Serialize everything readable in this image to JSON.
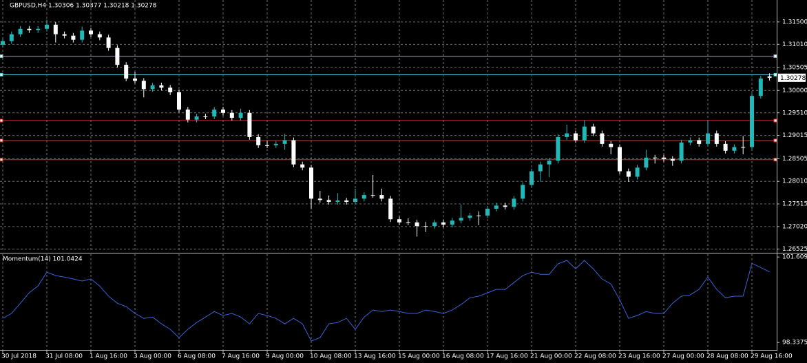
{
  "chart_data": [
    {
      "type": "candlestick",
      "title": "GBPUSD,H4  1.30306 1.30377 1.30218 1.30278",
      "bull_color": "#22b8b8",
      "bear_color": "#ffffff",
      "ylim": [
        1.2646,
        1.3198
      ],
      "yticks": [
        {
          "value": 1.315,
          "label": "1.31500"
        },
        {
          "value": 1.3101,
          "label": "1.31010"
        },
        {
          "value": 1.30505,
          "label": "1.30505"
        },
        {
          "value": 1.3,
          "label": "1.30000"
        },
        {
          "value": 1.2951,
          "label": "1.29510"
        },
        {
          "value": 1.29015,
          "label": "1.29015"
        },
        {
          "value": 1.28505,
          "label": "1.28505"
        },
        {
          "value": 1.2801,
          "label": "1.28010"
        },
        {
          "value": 1.27515,
          "label": "1.27515"
        },
        {
          "value": 1.2702,
          "label": "1.27020"
        },
        {
          "value": 1.26525,
          "label": "1.26525"
        }
      ],
      "grid": true,
      "price_label": 1.30278,
      "levels": [
        {
          "value": 1.3075,
          "color": "#4fc8d0"
        },
        {
          "value": 1.30345,
          "color": "#4fc8d0"
        },
        {
          "value": 1.2934,
          "color": "#ff2020"
        },
        {
          "value": 1.28905,
          "color": "#ff2020"
        },
        {
          "value": 1.28485,
          "color": "#ff2020"
        }
      ],
      "categories": [
        "30 Jul 2018",
        null,
        null,
        null,
        null,
        "31 Jul 08:00",
        null,
        null,
        null,
        null,
        "1 Aug 16:00",
        null,
        null,
        null,
        null,
        "3 Aug 00:00",
        null,
        null,
        null,
        null,
        "6 Aug 08:00",
        null,
        null,
        null,
        null,
        "7 Aug 16:00",
        null,
        null,
        null,
        null,
        "9 Aug 00:00",
        null,
        null,
        null,
        null,
        "10 Aug 08:00",
        null,
        null,
        null,
        null,
        "13 Aug 16:00",
        null,
        null,
        null,
        null,
        "15 Aug 00:00",
        null,
        null,
        null,
        null,
        "16 Aug 08:00",
        null,
        null,
        null,
        null,
        "17 Aug 16:00",
        null,
        null,
        null,
        null,
        "21 Aug 00:00",
        null,
        null,
        null,
        null,
        "22 Aug 08:00",
        null,
        null,
        null,
        null,
        "23 Aug 16:00",
        null,
        null,
        null,
        null,
        "27 Aug 00:00",
        null,
        null,
        null,
        null,
        "28 Aug 08:00",
        null,
        null,
        null,
        null,
        "29 Aug 16:00",
        null,
        null
      ],
      "candles": [
        [
          1.31,
          1.3114,
          1.3094,
          1.3108
        ],
        [
          1.3108,
          1.3129,
          1.3102,
          1.3123
        ],
        [
          1.3123,
          1.3141,
          1.3117,
          1.3135
        ],
        [
          1.3135,
          1.3141,
          1.3126,
          1.3132
        ],
        [
          1.3132,
          1.3141,
          1.3126,
          1.3135
        ],
        [
          1.3135,
          1.3155,
          1.3129,
          1.3144
        ],
        [
          1.3144,
          1.315,
          1.3105,
          1.3123
        ],
        [
          1.3123,
          1.3129,
          1.3114,
          1.312
        ],
        [
          1.312,
          1.3126,
          1.3105,
          1.3111
        ],
        [
          1.3111,
          1.314,
          1.3105,
          1.3131
        ],
        [
          1.3131,
          1.3137,
          1.3117,
          1.3123
        ],
        [
          1.3123,
          1.3129,
          1.311,
          1.3116
        ],
        [
          1.3116,
          1.3122,
          1.3087,
          1.3093
        ],
        [
          1.3093,
          1.3099,
          1.305,
          1.3056
        ],
        [
          1.3056,
          1.3062,
          1.302,
          1.3026
        ],
        [
          1.3026,
          1.304,
          1.3015,
          1.3021
        ],
        [
          1.3021,
          1.3027,
          1.2985,
          1.3003
        ],
        [
          1.3003,
          1.3017,
          1.2997,
          1.3011
        ],
        [
          1.3011,
          1.3017,
          1.3,
          1.3006
        ],
        [
          1.3006,
          1.3012,
          1.299,
          1.2996
        ],
        [
          1.2996,
          1.3002,
          1.2952,
          1.2958
        ],
        [
          1.2958,
          1.2964,
          1.293,
          1.2936
        ],
        [
          1.2936,
          1.2949,
          1.293,
          1.2943
        ],
        [
          1.2943,
          1.2949,
          1.2937,
          1.2943
        ],
        [
          1.2943,
          1.2964,
          1.2937,
          1.2958
        ],
        [
          1.2958,
          1.2964,
          1.2945,
          1.2951
        ],
        [
          1.2951,
          1.2957,
          1.2934,
          1.294
        ],
        [
          1.294,
          1.296,
          1.2934,
          1.2951
        ],
        [
          1.2951,
          1.2957,
          1.2892,
          1.2898
        ],
        [
          1.2898,
          1.2904,
          1.2874,
          1.288
        ],
        [
          1.288,
          1.289,
          1.2874,
          1.288
        ],
        [
          1.288,
          1.2889,
          1.2874,
          1.2883
        ],
        [
          1.2883,
          1.2905,
          1.287,
          1.2891
        ],
        [
          1.2891,
          1.2897,
          1.2832,
          1.2838
        ],
        [
          1.2838,
          1.2844,
          1.2825,
          1.2831
        ],
        [
          1.2831,
          1.2837,
          1.274,
          1.2763
        ],
        [
          1.2763,
          1.278,
          1.2754,
          1.276
        ],
        [
          1.276,
          1.277,
          1.275,
          1.2756
        ],
        [
          1.2756,
          1.2775,
          1.275,
          1.2759
        ],
        [
          1.2759,
          1.2765,
          1.275,
          1.2756
        ],
        [
          1.2756,
          1.2785,
          1.275,
          1.2763
        ],
        [
          1.2763,
          1.2777,
          1.2757,
          1.2771
        ],
        [
          1.2771,
          1.2815,
          1.2765,
          1.2771
        ],
        [
          1.2771,
          1.2785,
          1.2757,
          1.2763
        ],
        [
          1.2763,
          1.2769,
          1.2712,
          1.2718
        ],
        [
          1.2718,
          1.2724,
          1.2705,
          1.2711
        ],
        [
          1.2711,
          1.272,
          1.2705,
          1.2711
        ],
        [
          1.2711,
          1.2717,
          1.268,
          1.2703
        ],
        [
          1.2703,
          1.2712,
          1.269,
          1.2703
        ],
        [
          1.2703,
          1.2717,
          1.2697,
          1.2711
        ],
        [
          1.2711,
          1.2717,
          1.27,
          1.2706
        ],
        [
          1.2706,
          1.2721,
          1.27,
          1.2715
        ],
        [
          1.2715,
          1.275,
          1.2709,
          1.2721
        ],
        [
          1.2721,
          1.2732,
          1.2715,
          1.2726
        ],
        [
          1.2726,
          1.2735,
          1.2705,
          1.2726
        ],
        [
          1.2726,
          1.2747,
          1.272,
          1.2741
        ],
        [
          1.2741,
          1.2754,
          1.2735,
          1.2748
        ],
        [
          1.2748,
          1.2754,
          1.2739,
          1.2745
        ],
        [
          1.2745,
          1.2769,
          1.2739,
          1.2763
        ],
        [
          1.2763,
          1.2799,
          1.2757,
          1.2793
        ],
        [
          1.2793,
          1.2829,
          1.2787,
          1.2823
        ],
        [
          1.2823,
          1.2844,
          1.28,
          1.2838
        ],
        [
          1.2838,
          1.2852,
          1.281,
          1.2846
        ],
        [
          1.2846,
          1.2904,
          1.284,
          1.2898
        ],
        [
          1.2898,
          1.2925,
          1.2892,
          1.2906
        ],
        [
          1.2906,
          1.2912,
          1.2885,
          1.2891
        ],
        [
          1.2891,
          1.2935,
          1.2885,
          1.2921
        ],
        [
          1.2921,
          1.2927,
          1.29,
          1.2906
        ],
        [
          1.2906,
          1.2912,
          1.2877,
          1.2883
        ],
        [
          1.2883,
          1.2889,
          1.286,
          1.2876
        ],
        [
          1.2876,
          1.2882,
          1.2817,
          1.2823
        ],
        [
          1.2823,
          1.2829,
          1.28,
          1.2811
        ],
        [
          1.2811,
          1.2837,
          1.2805,
          1.2831
        ],
        [
          1.2831,
          1.287,
          1.2825,
          1.2853
        ],
        [
          1.2853,
          1.2859,
          1.284,
          1.2853
        ],
        [
          1.2853,
          1.2859,
          1.2844,
          1.285
        ],
        [
          1.285,
          1.2856,
          1.2835,
          1.2846
        ],
        [
          1.2846,
          1.2892,
          1.284,
          1.2886
        ],
        [
          1.2886,
          1.2897,
          1.288,
          1.2891
        ],
        [
          1.2891,
          1.2897,
          1.2877,
          1.2883
        ],
        [
          1.2883,
          1.2935,
          1.2877,
          1.2906
        ],
        [
          1.2906,
          1.2912,
          1.2877,
          1.2883
        ],
        [
          1.2883,
          1.2889,
          1.2862,
          1.2868
        ],
        [
          1.2868,
          1.2882,
          1.2862,
          1.2876
        ],
        [
          1.2876,
          1.29,
          1.286,
          1.2876
        ],
        [
          1.2876,
          1.2994,
          1.287,
          1.2988
        ],
        [
          1.2988,
          1.3032,
          1.2982,
          1.3026
        ],
        [
          1.30306,
          1.30377,
          1.30218,
          1.30278
        ]
      ]
    },
    {
      "type": "line",
      "title": "Momentum(14) 101.0424",
      "color": "#3a62d8",
      "ylim": [
        98.05,
        101.72
      ],
      "yticks": [
        101.6099,
        98.3375
      ],
      "grid": true,
      "values": [
        99.26,
        99.45,
        99.84,
        100.24,
        100.5,
        101.03,
        100.9,
        100.84,
        100.77,
        100.69,
        100.77,
        100.5,
        100.11,
        99.84,
        99.71,
        99.45,
        99.26,
        99.31,
        99.05,
        98.84,
        98.52,
        98.84,
        99.1,
        99.31,
        99.52,
        99.37,
        99.45,
        99.31,
        99.05,
        99.45,
        99.37,
        99.26,
        99.05,
        99.26,
        99.05,
        98.39,
        98.52,
        99.05,
        99.1,
        99.26,
        98.84,
        99.31,
        99.58,
        99.52,
        99.58,
        99.52,
        99.45,
        99.45,
        99.58,
        99.52,
        99.45,
        99.58,
        99.79,
        100.05,
        100.11,
        100.24,
        100.37,
        100.37,
        100.63,
        100.9,
        101.03,
        100.95,
        100.95,
        101.35,
        101.48,
        101.16,
        101.48,
        101.16,
        100.77,
        100.58,
        99.97,
        99.26,
        99.37,
        99.52,
        99.45,
        99.45,
        99.84,
        100.11,
        100.16,
        100.37,
        100.84,
        100.37,
        100.05,
        100.11,
        100.11,
        101.37,
        101.21,
        101.04
      ]
    }
  ]
}
